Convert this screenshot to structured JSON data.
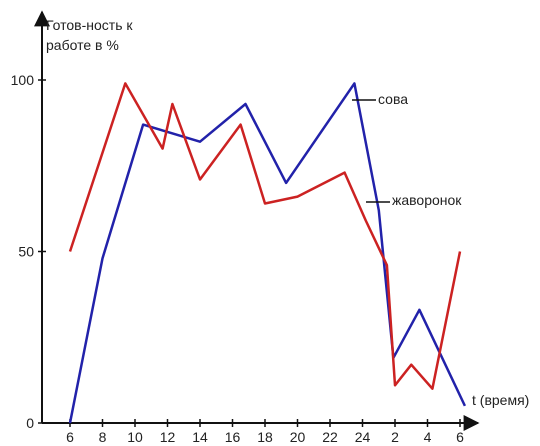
{
  "chart_data": {
    "type": "line",
    "ylabel_lines": [
      "Готов-ность к",
      "работе в %"
    ],
    "xlabel": "t (время)",
    "x_categories": [
      "6",
      "8",
      "10",
      "12",
      "14",
      "16",
      "18",
      "20",
      "22",
      "24",
      "2",
      "4",
      "6"
    ],
    "y_ticks": [
      "0",
      "50",
      "100"
    ],
    "ylim": [
      0,
      100
    ],
    "grid": false,
    "legend": "inline labels",
    "series": [
      {
        "name": "сова",
        "color": "#2222aa",
        "points": [
          {
            "x": 6,
            "y": 0
          },
          {
            "x": 8,
            "y": 48
          },
          {
            "x": 10.5,
            "y": 87
          },
          {
            "x": 14,
            "y": 82
          },
          {
            "x": 16.8,
            "y": 93
          },
          {
            "x": 19.3,
            "y": 70
          },
          {
            "x": 23.5,
            "y": 99
          },
          {
            "x": 25,
            "y": 62
          },
          {
            "x": 25.9,
            "y": 19
          },
          {
            "x": 27.5,
            "y": 33
          },
          {
            "x": 30.3,
            "y": 5
          }
        ]
      },
      {
        "name": "жаворонок",
        "color": "#cc2222",
        "points": [
          {
            "x": 6,
            "y": 50
          },
          {
            "x": 9.4,
            "y": 99
          },
          {
            "x": 11.7,
            "y": 80
          },
          {
            "x": 12.3,
            "y": 93
          },
          {
            "x": 14,
            "y": 71
          },
          {
            "x": 16.5,
            "y": 87
          },
          {
            "x": 18,
            "y": 64
          },
          {
            "x": 20,
            "y": 66
          },
          {
            "x": 22.9,
            "y": 73
          },
          {
            "x": 24.2,
            "y": 59
          },
          {
            "x": 25.5,
            "y": 46
          },
          {
            "x": 26,
            "y": 11
          },
          {
            "x": 27,
            "y": 17
          },
          {
            "x": 28.3,
            "y": 10
          },
          {
            "x": 30,
            "y": 50
          }
        ]
      }
    ]
  }
}
